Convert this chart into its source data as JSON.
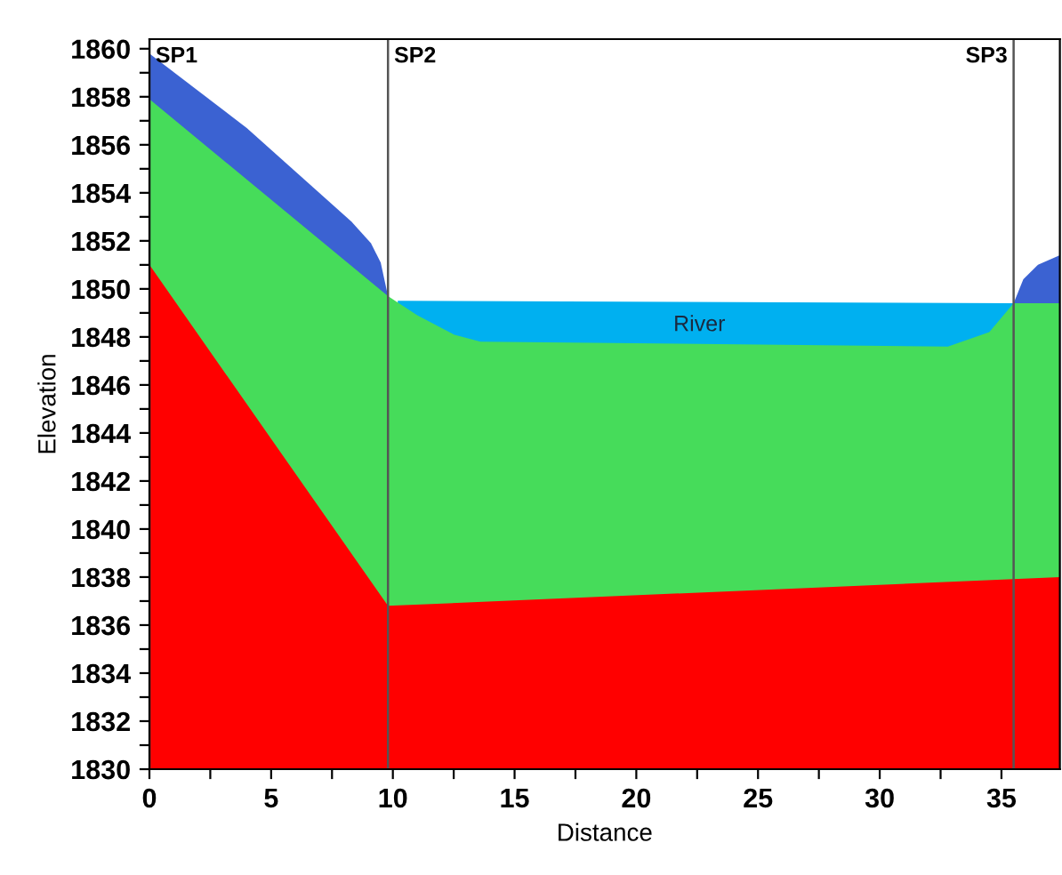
{
  "chart_data": {
    "type": "area",
    "xlabel": "Distance",
    "ylabel": "Elevation",
    "xlim": [
      0,
      37.4
    ],
    "ylim": [
      1830,
      1860.4
    ],
    "xticks": [
      0,
      {
        "value": 2.5,
        "label": null
      },
      5,
      {
        "value": 7.5,
        "label": null
      },
      10,
      {
        "value": 12.5,
        "label": null
      },
      15,
      {
        "value": 17.5,
        "label": null
      },
      20,
      {
        "value": 22.5,
        "label": null
      },
      25,
      {
        "value": 27.5,
        "label": null
      },
      30,
      {
        "value": 32.5,
        "label": null
      },
      35
    ],
    "yticks": [
      1830,
      {
        "value": 1831,
        "label": null
      },
      1832,
      {
        "value": 1833,
        "label": null
      },
      1834,
      {
        "value": 1835,
        "label": null
      },
      1836,
      {
        "value": 1837,
        "label": null
      },
      1838,
      {
        "value": 1839,
        "label": null
      },
      1840,
      {
        "value": 1841,
        "label": null
      },
      1842,
      {
        "value": 1843,
        "label": null
      },
      1844,
      {
        "value": 1845,
        "label": null
      },
      1846,
      {
        "value": 1847,
        "label": null
      },
      1848,
      {
        "value": 1849,
        "label": null
      },
      1850,
      {
        "value": 1851,
        "label": null
      },
      1852,
      {
        "value": 1853,
        "label": null
      },
      1854,
      {
        "value": 1855,
        "label": null
      },
      1856,
      {
        "value": 1857,
        "label": null
      },
      1858,
      {
        "value": 1859,
        "label": null
      },
      1860
    ],
    "series": [
      {
        "color": "#3b62d2",
        "x": [
          0,
          4,
          8.3,
          9.1,
          9.5,
          9.8,
          20,
          35.5,
          35.9,
          36.5,
          37.4
        ],
        "values": [
          1859.8,
          1856.7,
          1852.8,
          1851.9,
          1851.1,
          1849.7,
          null,
          1849.4,
          1850.4,
          1851.0,
          1851.4
        ]
      },
      {
        "color": "#00b0f0",
        "x": [
          10.2,
          35.5
        ],
        "values": [
          1849.5,
          1849.4
        ]
      },
      {
        "color": "#46dc5a",
        "x": [
          0,
          9.8,
          11,
          12.5,
          13.6,
          32.8,
          34.5,
          35.5,
          37.4
        ],
        "values": [
          1857.9,
          1849.7,
          1848.9,
          1848.1,
          1847.8,
          1847.6,
          1848.2,
          1849.4,
          1849.4
        ]
      },
      {
        "color": "#ff0000",
        "x": [
          0,
          9.8,
          37.4
        ],
        "values": [
          1851,
          1836.8,
          1838.0
        ]
      }
    ],
    "ref_lines": [
      {
        "axis": "x",
        "value": 0,
        "label": "SP1",
        "color": "#555555"
      },
      {
        "axis": "x",
        "value": 9.8,
        "label": "SP2",
        "color": "#555555"
      },
      {
        "axis": "x",
        "value": 35.5,
        "label": "SP3",
        "color": "#555555"
      }
    ],
    "annotations": [
      "River"
    ],
    "grid": false,
    "legend": false
  }
}
